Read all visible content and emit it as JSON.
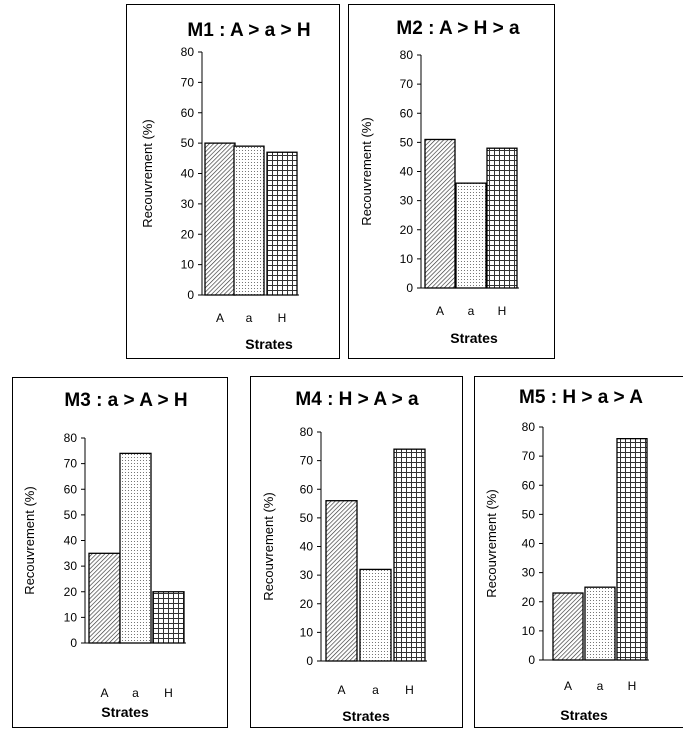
{
  "chart_data": [
    {
      "type": "bar",
      "title": "M1 : A > a > H",
      "categories": [
        "A",
        "a",
        "H"
      ],
      "values": [
        50,
        49,
        47
      ],
      "xlabel": "Strates",
      "ylabel": "Recouvrement (%)",
      "ylim": [
        0,
        80
      ],
      "yticks": [
        0,
        10,
        20,
        30,
        40,
        50,
        60,
        70,
        80
      ]
    },
    {
      "type": "bar",
      "title": "M2 : A > H > a",
      "categories": [
        "A",
        "a",
        "H"
      ],
      "values": [
        51,
        36,
        48
      ],
      "xlabel": "Strates",
      "ylabel": "Recouvrement (%)",
      "ylim": [
        0,
        80
      ],
      "yticks": [
        0,
        10,
        20,
        30,
        40,
        50,
        60,
        70,
        80
      ]
    },
    {
      "type": "bar",
      "title": "M3 : a > A > H",
      "categories": [
        "A",
        "a",
        "H"
      ],
      "values": [
        35,
        74,
        20
      ],
      "xlabel": "Strates",
      "ylabel": "Recouvrement (%)",
      "ylim": [
        0,
        80
      ],
      "yticks": [
        0,
        10,
        20,
        30,
        40,
        50,
        60,
        70,
        80
      ]
    },
    {
      "type": "bar",
      "title": "M4 : H > A > a",
      "categories": [
        "A",
        "a",
        "H"
      ],
      "values": [
        56,
        32,
        74
      ],
      "xlabel": "Strates",
      "ylabel": "Recouvrement (%)",
      "ylim": [
        0,
        80
      ],
      "yticks": [
        0,
        10,
        20,
        30,
        40,
        50,
        60,
        70,
        80
      ]
    },
    {
      "type": "bar",
      "title": "M5 : H > a > A",
      "categories": [
        "A",
        "a",
        "H"
      ],
      "values": [
        23,
        25,
        76
      ],
      "xlabel": "Strates",
      "ylabel": "Recouvrement (%)",
      "ylim": [
        0,
        80
      ],
      "yticks": [
        0,
        10,
        20,
        30,
        40,
        50,
        60,
        70,
        80
      ]
    }
  ],
  "colors": {
    "border": "#000000",
    "bar_fill": "#ffffff",
    "pattern": "#333333"
  },
  "bar_patterns": [
    "diagonal-hatch",
    "dotted",
    "grid"
  ]
}
